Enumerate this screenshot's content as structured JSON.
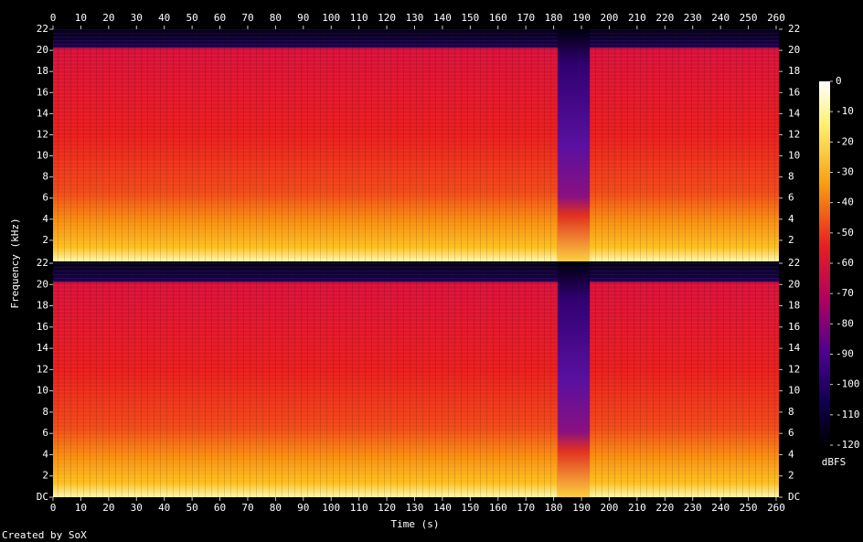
{
  "chart_data": {
    "type": "spectrogram",
    "xlabel": "Time (s)",
    "ylabel": "Frequency (kHz)",
    "xlim": [
      0,
      260
    ],
    "xticks": [
      0,
      10,
      20,
      30,
      40,
      50,
      60,
      70,
      80,
      90,
      100,
      110,
      120,
      130,
      140,
      150,
      160,
      170,
      180,
      190,
      200,
      210,
      220,
      230,
      240,
      250,
      260
    ],
    "panels": [
      {
        "ylim": [
          0,
          22
        ],
        "yticks": [
          2,
          4,
          6,
          8,
          10,
          12,
          14,
          16,
          18,
          20,
          22
        ]
      },
      {
        "ylim": [
          0,
          22
        ],
        "yticks": [
          {
            "value": 0,
            "label": "DC"
          },
          2,
          4,
          6,
          8,
          10,
          12,
          14,
          16,
          18,
          20,
          22
        ]
      }
    ],
    "colorbar": {
      "label": "dBFS",
      "lim": [
        -120,
        0
      ],
      "ticks": [
        0,
        -10,
        -20,
        -30,
        -40,
        -50,
        -60,
        -70,
        -80,
        -90,
        -100,
        -110,
        -120
      ]
    }
  },
  "footer": "Created by SoX"
}
